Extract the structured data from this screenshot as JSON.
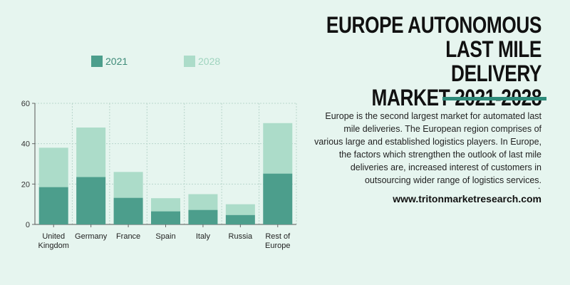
{
  "header": {
    "title_lines": [
      "EUROPE AUTONOMOUS LAST MILE",
      "DELIVERY",
      "MARKET 2021-2028"
    ]
  },
  "description": "Europe is the second largest market for automated last mile deliveries. The European region comprises of various large and established logistics players. In Europe, the factors which strengthen the outlook of last mile deliveries are, increased interest of customers in outsourcing wider range of logistics services.",
  "trailing_dot": ".",
  "website": "www.tritonmarketresearch.com",
  "colors": {
    "accent": "#2e8b7a",
    "series_2021": "#4c9e8c",
    "series_2028": "#acdcc9",
    "legend_2021_text": "#3d8a78",
    "legend_2028_text": "#9fd4bf"
  },
  "chart_data": {
    "type": "bar",
    "stacked": true,
    "categories": [
      "United Kingdom",
      "Germany",
      "France",
      "Spain",
      "Italy",
      "Russia",
      "Rest of Europe"
    ],
    "category_label_lines": [
      [
        "United",
        "Kingdom"
      ],
      [
        "Germany"
      ],
      [
        "France"
      ],
      [
        "Spain"
      ],
      [
        "Italy"
      ],
      [
        "Russia"
      ],
      [
        "Rest of",
        "Europe"
      ]
    ],
    "series": [
      {
        "name": "2021",
        "values": [
          18.5,
          23.5,
          13.2,
          6.5,
          7.2,
          4.7,
          25.2
        ]
      },
      {
        "name": "2028",
        "values": [
          19.5,
          24.5,
          12.8,
          6.5,
          7.8,
          5.3,
          25.0
        ]
      }
    ],
    "ylim": [
      0,
      60
    ],
    "yticks": [
      0,
      20,
      40,
      60
    ],
    "grid": true,
    "legend_position": "top"
  }
}
